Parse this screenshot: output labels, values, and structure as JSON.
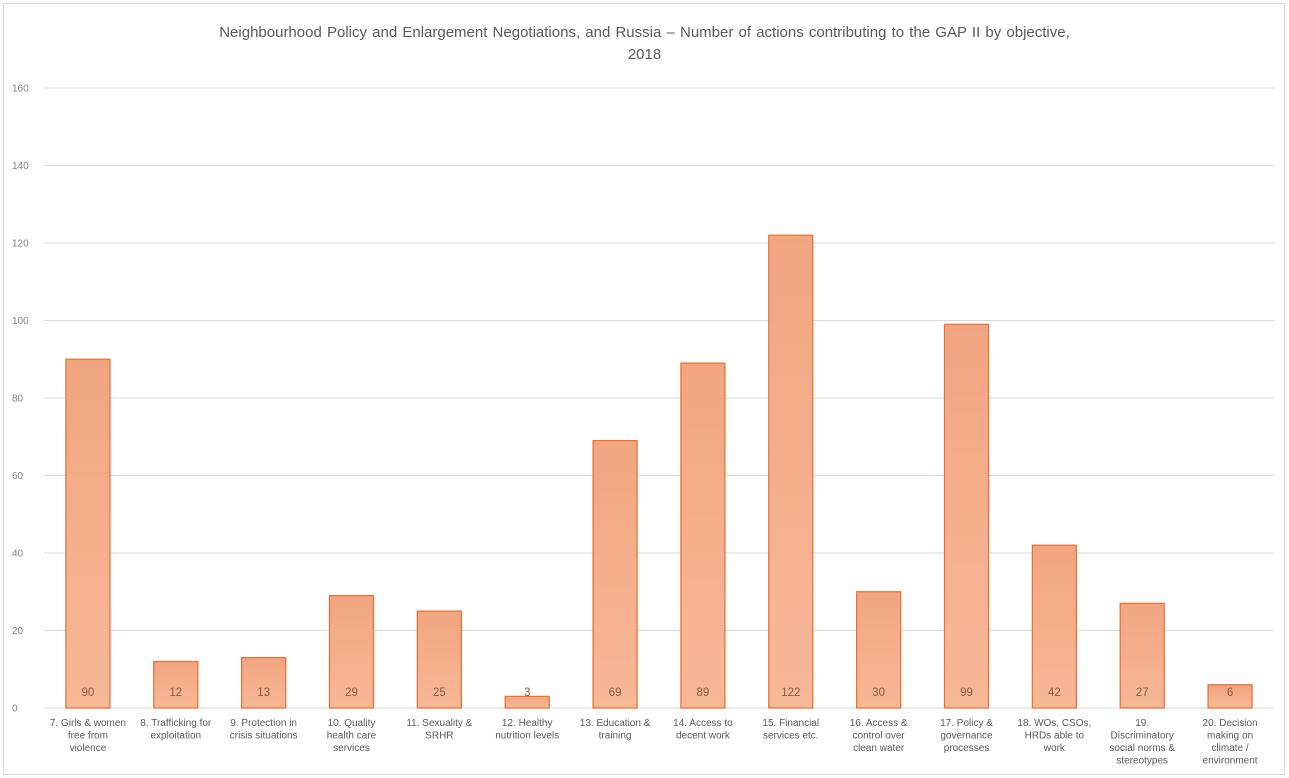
{
  "chart_data": {
    "type": "bar",
    "title": "Neighbourhood  Policy and Enlargement Negotiations, and Russia – Number of actions contributing  to the GAP II by objective,\n2018",
    "categories": [
      [
        "7. Girls & women",
        "free from",
        "violence"
      ],
      [
        "8. Trafficking for",
        "exploitation"
      ],
      [
        "9. Protection in",
        "crisis situations"
      ],
      [
        "10. Quality",
        "health care",
        "services"
      ],
      [
        "11. Sexuality &",
        "SRHR"
      ],
      [
        "12. Healthy",
        "nutrition levels"
      ],
      [
        "13. Education &",
        "training"
      ],
      [
        "14. Access to",
        "decent work"
      ],
      [
        "15. Financial",
        "services etc."
      ],
      [
        "16. Access &",
        "control over",
        "clean water"
      ],
      [
        "17. Policy &",
        "governance",
        "processes"
      ],
      [
        "18. WOs, CSOs,",
        "HRDs able to",
        "work"
      ],
      [
        "19.",
        "Discriminatory",
        "social norms &",
        "stereotypes"
      ],
      [
        "20. Decision",
        "making on",
        "climate /",
        "environment"
      ]
    ],
    "values": [
      90,
      12,
      13,
      29,
      25,
      3,
      69,
      89,
      122,
      30,
      99,
      42,
      27,
      6
    ],
    "ylim": [
      0,
      160
    ],
    "yticks": [
      0,
      20,
      40,
      60,
      80,
      100,
      120,
      140,
      160
    ],
    "grid": true,
    "legend": "none",
    "colors": {
      "bar_fill_top": "#f2a581",
      "bar_fill_bottom": "#f7b898",
      "bar_stroke": "#e8743b",
      "grid": "#d9d9d9",
      "title": "#595959"
    }
  }
}
